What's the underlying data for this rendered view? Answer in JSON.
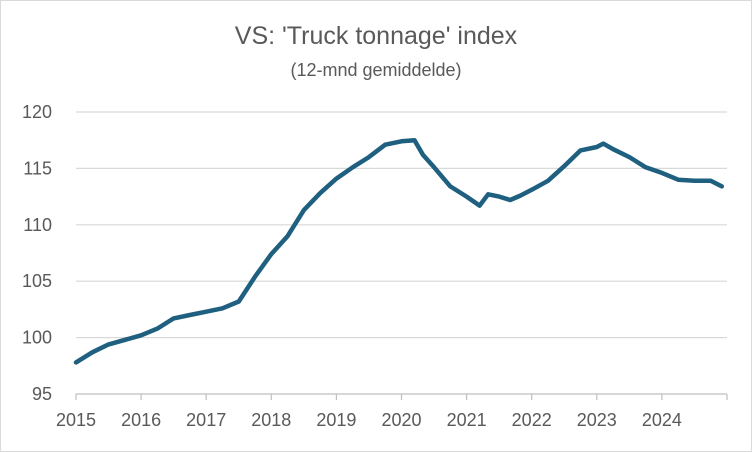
{
  "chart_data": {
    "type": "line",
    "title": "VS: 'Truck tonnage' index",
    "subtitle": "(12-mnd gemiddelde)",
    "xlabel": "",
    "ylabel": "",
    "ylim": [
      95,
      120
    ],
    "xlim": [
      2015,
      2025
    ],
    "yticks": [
      "95",
      "100",
      "105",
      "110",
      "115",
      "120"
    ],
    "xticks": [
      "2015",
      "2016",
      "2017",
      "2018",
      "2019",
      "2020",
      "2021",
      "2022",
      "2023",
      "2024"
    ],
    "grid": "horizontal",
    "color": "#1f5f7f",
    "series": [
      {
        "name": "Truck tonnage index",
        "x": [
          2015.0,
          2015.25,
          2015.5,
          2015.75,
          2016.0,
          2016.25,
          2016.5,
          2016.75,
          2017.0,
          2017.25,
          2017.5,
          2017.75,
          2018.0,
          2018.25,
          2018.5,
          2018.75,
          2019.0,
          2019.25,
          2019.5,
          2019.75,
          2020.0,
          2020.2,
          2020.33,
          2020.5,
          2020.75,
          2021.0,
          2021.2,
          2021.33,
          2021.5,
          2021.67,
          2021.83,
          2022.0,
          2022.25,
          2022.5,
          2022.75,
          2023.0,
          2023.1,
          2023.25,
          2023.5,
          2023.75,
          2024.0,
          2024.25,
          2024.5,
          2024.75,
          2024.92
        ],
        "values": [
          97.8,
          98.7,
          99.4,
          99.8,
          100.2,
          100.8,
          101.7,
          102.0,
          102.3,
          102.6,
          103.2,
          105.4,
          107.4,
          109.0,
          111.3,
          112.8,
          114.1,
          115.1,
          116.0,
          117.1,
          117.4,
          117.5,
          116.2,
          115.1,
          113.4,
          112.5,
          111.7,
          112.7,
          112.5,
          112.2,
          112.6,
          113.1,
          113.9,
          115.2,
          116.6,
          116.9,
          117.2,
          116.7,
          116.0,
          115.1,
          114.6,
          114.0,
          113.9,
          113.9,
          113.4
        ]
      }
    ]
  }
}
